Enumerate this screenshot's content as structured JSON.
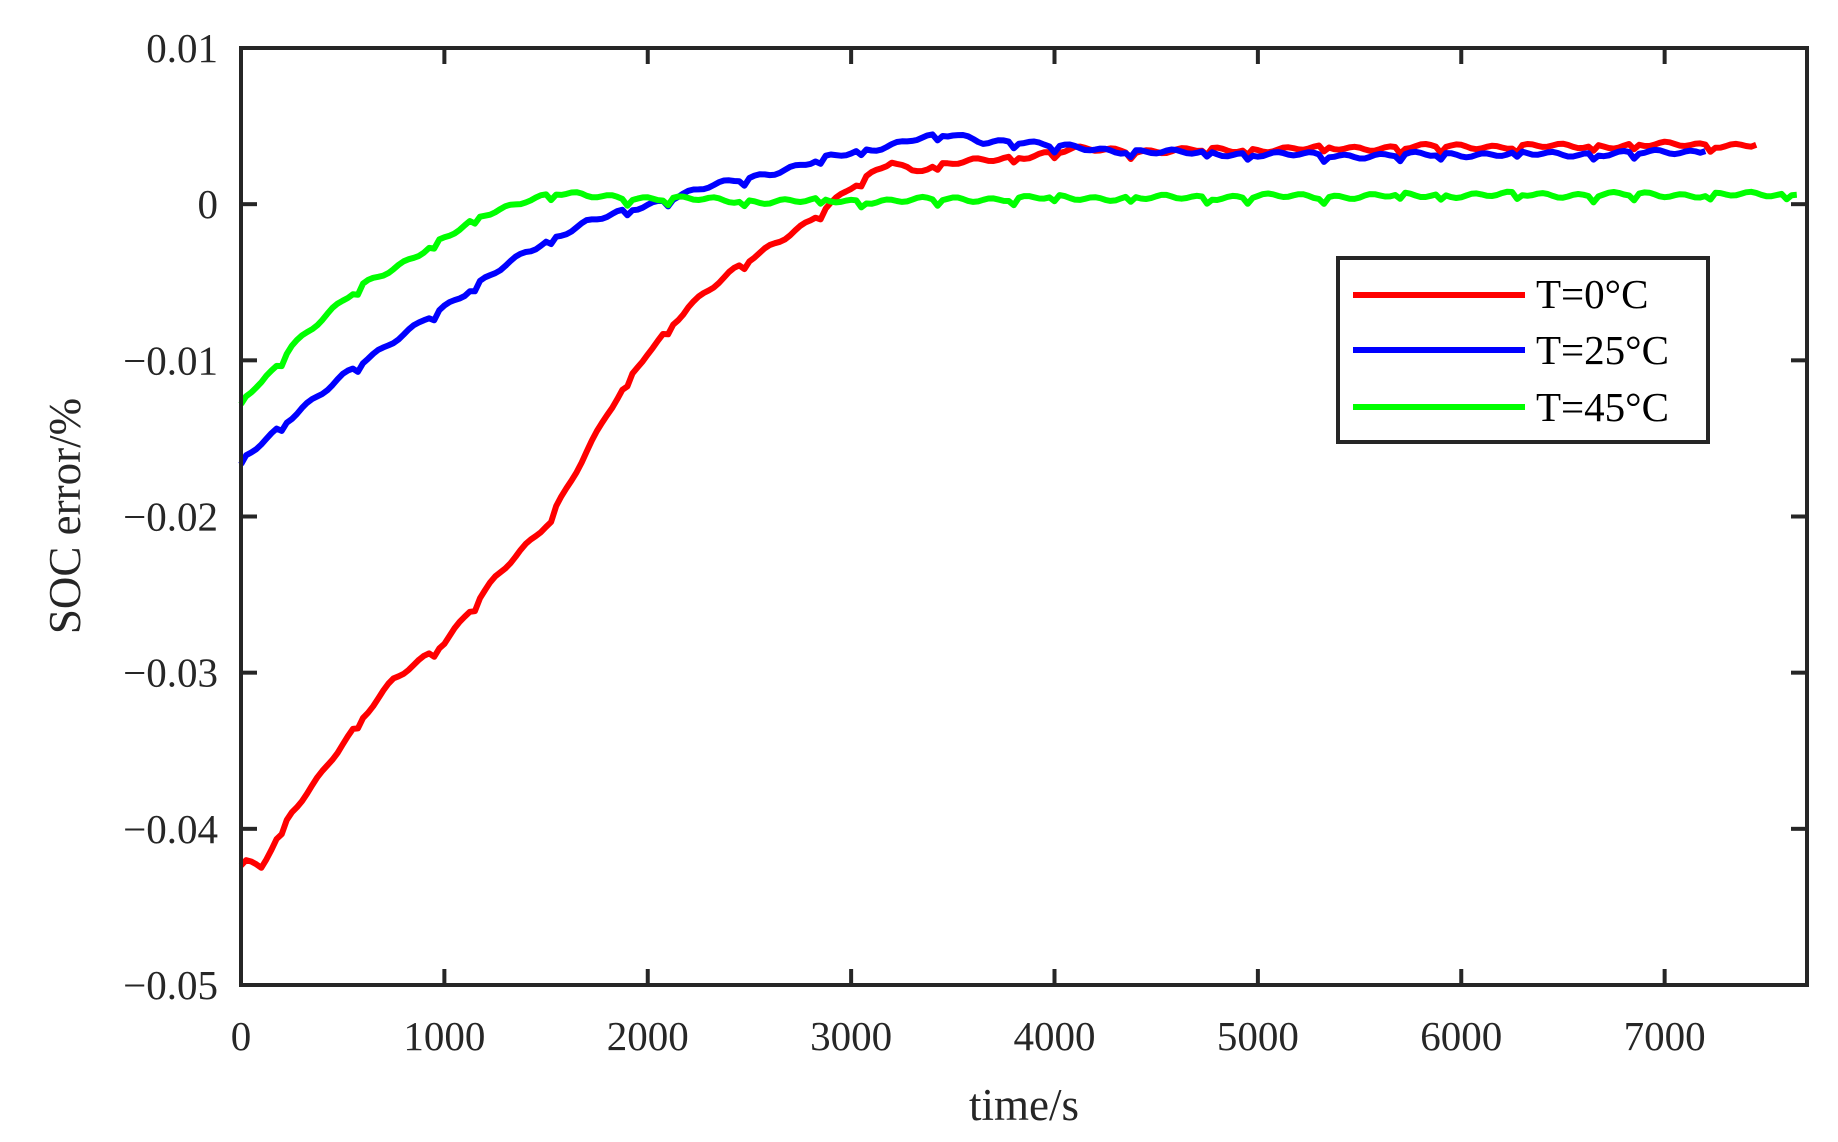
{
  "chart_data": {
    "type": "line",
    "title": "",
    "xlabel": "time/s",
    "ylabel": "SOC error/%",
    "xlim": [
      0,
      7700
    ],
    "ylim": [
      -0.05,
      0.01
    ],
    "grid": false,
    "legend_position": "inside upper right",
    "x_ticks": [
      0,
      1000,
      2000,
      3000,
      4000,
      5000,
      6000,
      7000
    ],
    "x_tick_labels": [
      "0",
      "1000",
      "2000",
      "3000",
      "4000",
      "5000",
      "6000",
      "7000"
    ],
    "y_ticks": [
      0.01,
      0,
      -0.01,
      -0.02,
      -0.03,
      -0.04,
      -0.05
    ],
    "y_tick_labels": [
      "0.01",
      "0",
      "−0.01",
      "−0.02",
      "−0.03",
      "−0.04",
      "−0.05"
    ],
    "series": [
      {
        "name": "T=0°C",
        "color": "#ff0000",
        "x": [
          0,
          100,
          250,
          500,
          750,
          1000,
          1250,
          1500,
          1800,
          2000,
          2200,
          2400,
          2600,
          2800,
          3000,
          3200,
          3300,
          3500,
          3800,
          4100,
          4500,
          5000,
          5500,
          6000,
          6500,
          7000,
          7450
        ],
        "y": [
          -0.042,
          -0.0425,
          -0.039,
          -0.0345,
          -0.0305,
          -0.028,
          -0.024,
          -0.0205,
          -0.0135,
          -0.0095,
          -0.0065,
          -0.0045,
          -0.0027,
          -0.001,
          0.001,
          0.0028,
          0.0022,
          0.0026,
          0.003,
          0.0035,
          0.0034,
          0.0035,
          0.0036,
          0.0037,
          0.0037,
          0.0038,
          0.0038
        ]
      },
      {
        "name": "T=25°C",
        "color": "#0000ff",
        "x": [
          0,
          150,
          300,
          500,
          700,
          900,
          1100,
          1400,
          1700,
          2000,
          2300,
          2600,
          2900,
          3100,
          3300,
          3500,
          3650,
          3800,
          4000,
          4200,
          4600,
          5000,
          5500,
          6000,
          6500,
          7000,
          7200
        ],
        "y": [
          -0.0165,
          -0.0148,
          -0.013,
          -0.011,
          -0.0093,
          -0.0073,
          -0.0058,
          -0.003,
          -0.0012,
          0.0,
          0.0011,
          0.002,
          0.003,
          0.0035,
          0.0042,
          0.0044,
          0.004,
          0.0041,
          0.0037,
          0.0035,
          0.0033,
          0.0032,
          0.0031,
          0.0032,
          0.0032,
          0.0033,
          0.0034
        ]
      },
      {
        "name": "T=45°C",
        "color": "#00ff00",
        "x": [
          0,
          100,
          250,
          450,
          600,
          800,
          1000,
          1200,
          1400,
          1550,
          1700,
          2000,
          2500,
          3000,
          3500,
          4000,
          4500,
          5000,
          5500,
          6000,
          6500,
          7000,
          7650
        ],
        "y": [
          -0.0125,
          -0.0115,
          -0.009,
          -0.0068,
          -0.0052,
          -0.0037,
          -0.0022,
          -0.0007,
          0.0003,
          0.0007,
          0.0005,
          0.0004,
          0.0002,
          0.0002,
          0.0003,
          0.0004,
          0.0004,
          0.0005,
          0.0005,
          0.0006,
          0.0006,
          0.0006,
          0.0006
        ]
      }
    ]
  },
  "axes": {
    "xlabel": "time/s",
    "ylabel": "SOC error/%"
  },
  "legend": {
    "items": [
      {
        "label": "T=0°C",
        "color": "#ff0000"
      },
      {
        "label": "T=25°C",
        "color": "#0000ff"
      },
      {
        "label": "T=45°C",
        "color": "#00ff00"
      }
    ]
  },
  "colors": {
    "axis": "#262626",
    "background": "#ffffff"
  }
}
